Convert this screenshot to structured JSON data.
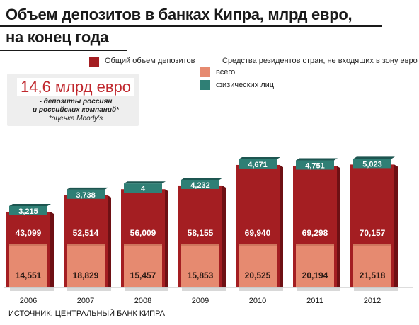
{
  "header": {
    "title_line1": "Объем депозитов в банках Кипра, млрд евро,",
    "title_line2": "на конец года"
  },
  "legend": {
    "total_label": "Общий объем депозитов",
    "nonresident_heading": "Средства резидентов стран, не входящих в зону евро",
    "nonresident_total_label": "всего",
    "individuals_label": "физических лиц"
  },
  "callout": {
    "headline": "14,6 млрд евро",
    "line1": "- депозиты россиян",
    "line2": "и российских компаний*",
    "line3": "*оценка Moody's"
  },
  "source": "ИСТОЧНИК: ЦЕНТРАЛЬНЫЙ БАНК КИПРА",
  "colors": {
    "total": "#a41e22",
    "total_dark": "#6e1014",
    "nonresident": "#e68a70",
    "nonresident_dark": "#b8614b",
    "individuals": "#2f7f75",
    "individuals_dark": "#1d5550",
    "shadow": "#d8d8d8"
  },
  "chart_data": {
    "type": "bar",
    "categories": [
      "2006",
      "2007",
      "2008",
      "2009",
      "2010",
      "2011",
      "2012"
    ],
    "series": [
      {
        "name": "Общий объем депозитов",
        "values": [
          43.099,
          52.514,
          56.009,
          58.155,
          69.94,
          69.298,
          70.157
        ],
        "labels": [
          "43,099",
          "52,514",
          "56,009",
          "58,155",
          "69,940",
          "69,298",
          "70,157"
        ]
      },
      {
        "name": "всего",
        "values": [
          14.551,
          18.829,
          15.457,
          15.853,
          20.525,
          20.194,
          21.518
        ],
        "labels": [
          "14,551",
          "18,829",
          "15,457",
          "15,853",
          "20,525",
          "20,194",
          "21,518"
        ]
      },
      {
        "name": "физических лиц",
        "values": [
          3.215,
          3.738,
          4,
          4.232,
          4.671,
          4.751,
          5.023
        ],
        "labels": [
          "3,215",
          "3,738",
          "4",
          "4,232",
          "4,671",
          "4,751",
          "5,023"
        ]
      }
    ]
  }
}
